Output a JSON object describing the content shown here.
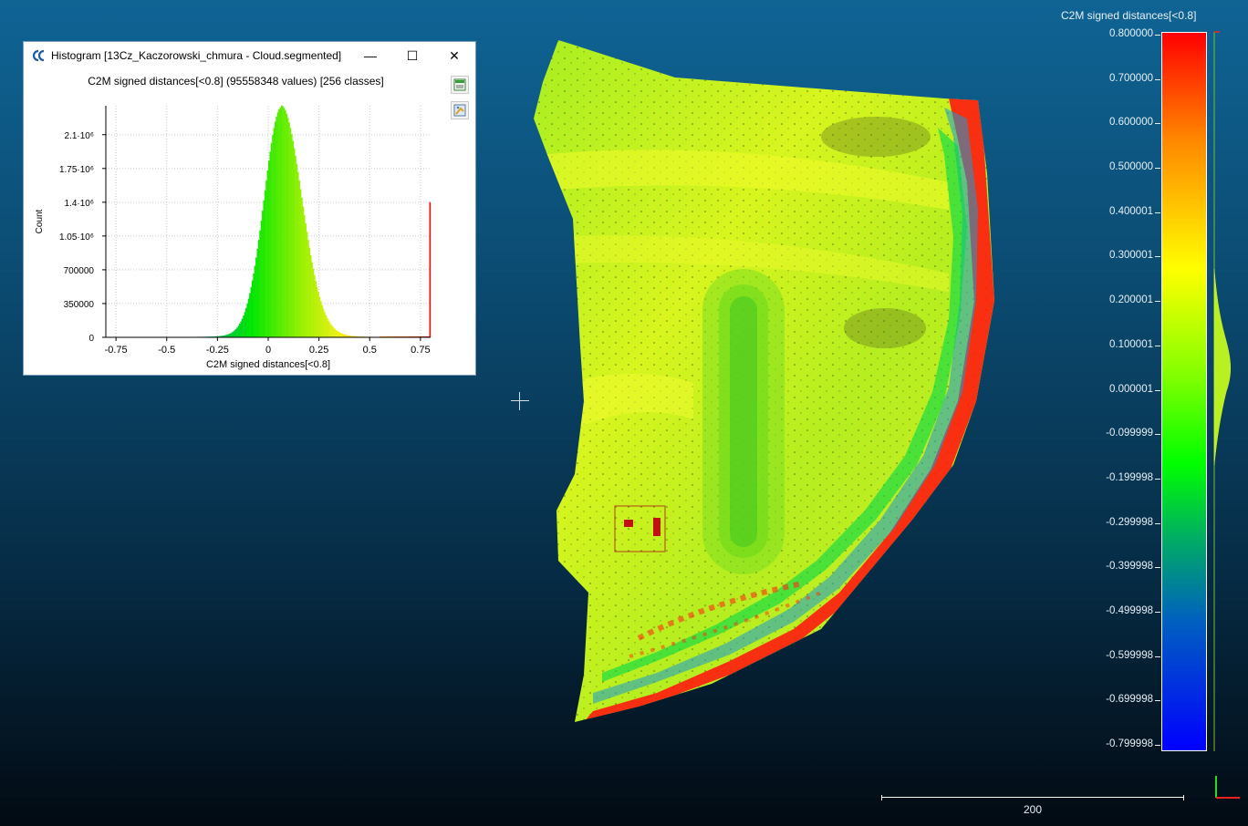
{
  "window": {
    "title": "Histogram [13Cz_Kaczorowski_chmura - Cloud.segmented]",
    "minimize_glyph": "—",
    "maximize_glyph": "☐",
    "close_glyph": "✕",
    "app_icon": "cloudcompare-icon"
  },
  "histogram": {
    "header": "C2M signed distances[<0.8] (95558348 values)  [256 classes]",
    "toolbar": [
      "export-csv-icon",
      "export-image-icon"
    ]
  },
  "chart_data": {
    "type": "bar",
    "title": "C2M signed distances[<0.8] (95558348 values)  [256 classes]",
    "xlabel": "C2M signed distances[<0.8]",
    "ylabel": "Count",
    "xlim": [
      -0.8,
      0.8
    ],
    "ylim": [
      0,
      2400000
    ],
    "x_ticks": [
      "-0.75",
      "-0.5",
      "-0.25",
      "0",
      "0.25",
      "0.5",
      "0.75"
    ],
    "x_tick_values": [
      -0.75,
      -0.5,
      -0.25,
      0,
      0.25,
      0.5,
      0.75
    ],
    "y_ticks": [
      "0",
      "350000",
      "700000",
      "1.05·10⁶",
      "1.4·10⁶",
      "1.75·10⁶",
      "2.1·10⁶"
    ],
    "y_tick_values": [
      0,
      350000,
      700000,
      1050000,
      1400000,
      1750000,
      2100000
    ],
    "classes": 256,
    "values": 95558348,
    "peak_x": 0.065,
    "peak_count": 2340000,
    "last_bin_count": 1400000,
    "grid": true,
    "colormap": "blue-green-yellow-red"
  },
  "color_scale": {
    "title": "C2M signed distances[<0.8]",
    "labels": [
      "0.800000",
      "0.700000",
      "0.600000",
      "0.500000",
      "0.400001",
      "0.300001",
      "0.200001",
      "0.100001",
      "0.000001",
      "-0.099999",
      "-0.199998",
      "-0.299998",
      "-0.399998",
      "-0.499998",
      "-0.599998",
      "-0.699998",
      "-0.799998"
    ]
  },
  "scale_bar": {
    "label": "200"
  }
}
